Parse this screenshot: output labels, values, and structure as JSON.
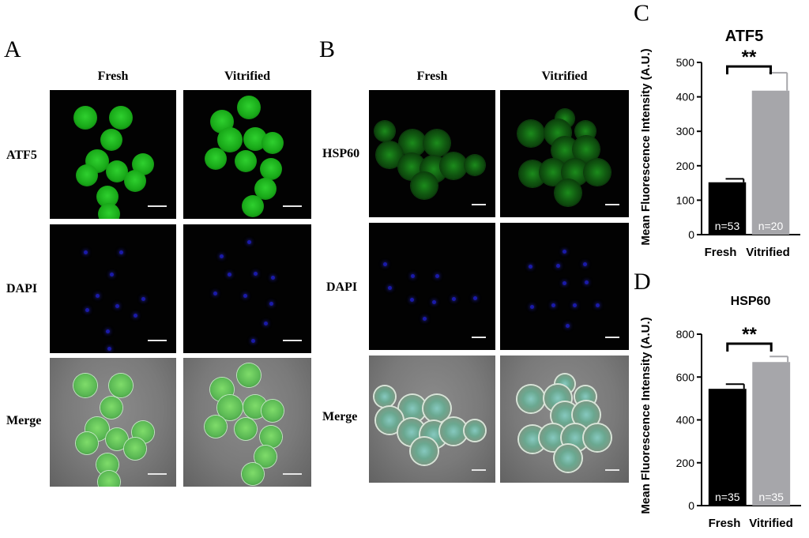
{
  "figure": {
    "panel_A": {
      "letter": "A",
      "columns": [
        "Fresh",
        "Vitrified"
      ],
      "rows": [
        "ATF5",
        "DAPI",
        "Merge"
      ]
    },
    "panel_B": {
      "letter": "B",
      "columns": [
        "Fresh",
        "Vitrified"
      ],
      "rows": [
        "HSP60",
        "DAPI",
        "Merge"
      ]
    },
    "panel_C": {
      "letter": "C"
    },
    "panel_D": {
      "letter": "D"
    }
  },
  "colors": {
    "fresh_bar": "#000000",
    "vitrified_bar": "#a6a6aa",
    "green_stain": "#2fd02f",
    "blue_stain": "#1a1aa8"
  },
  "chart_data": [
    {
      "type": "bar",
      "title": "ATF5",
      "ylabel": "Mean Fluorescence Intensity (A.U.)",
      "xlabel": "",
      "categories": [
        "Fresh",
        "Vitrified"
      ],
      "values": [
        152,
        418
      ],
      "errors": [
        10,
        52
      ],
      "n_labels": [
        "n=53",
        "n=20"
      ],
      "ylim": [
        0,
        500
      ],
      "yticks": [
        "0",
        "100",
        "200",
        "300",
        "400",
        "500"
      ],
      "significance": "**"
    },
    {
      "type": "bar",
      "title": "HSP60",
      "ylabel": "Mean Fluorescence Intensity (A.U.)",
      "xlabel": "",
      "categories": [
        "Fresh",
        "Vitrified"
      ],
      "values": [
        545,
        670
      ],
      "errors": [
        22,
        26
      ],
      "n_labels": [
        "n=35",
        "n=35"
      ],
      "ylim": [
        0,
        800
      ],
      "yticks": [
        "0",
        "200",
        "400",
        "600",
        "800"
      ],
      "significance": "**"
    }
  ]
}
